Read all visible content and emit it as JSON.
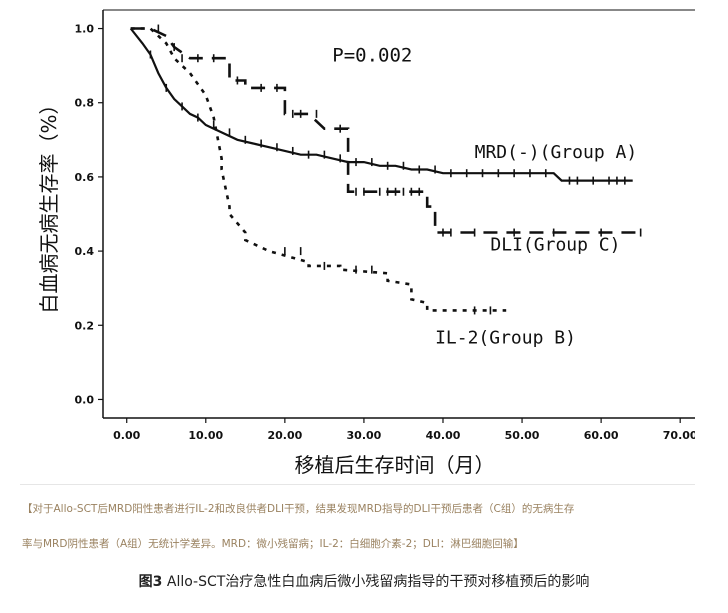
{
  "chart_data": {
    "type": "line",
    "ylabel": "白血病无病生存率（%）",
    "xlabel": "移植后生存时间（月）",
    "annotation": "P=0.002",
    "xlim": [
      -3,
      72
    ],
    "ylim": [
      -0.05,
      1.05
    ],
    "x_ticks": [
      "0.00",
      "10.00",
      "20.00",
      "30.00",
      "40.00",
      "50.00",
      "60.00",
      "70.00"
    ],
    "y_ticks": [
      "0.0",
      "0.2",
      "0.4",
      "0.6",
      "0.8",
      "1.0"
    ],
    "x_tick_values": [
      0,
      10,
      20,
      30,
      40,
      50,
      60,
      70
    ],
    "y_tick_values": [
      0,
      0.2,
      0.4,
      0.6,
      0.8,
      1.0
    ],
    "grid": false,
    "series": [
      {
        "name": "MRD(-)(Group A)",
        "style": "solid",
        "label_at": [
          44,
          0.67
        ],
        "x": [
          0.5,
          2,
          3,
          4,
          5,
          6,
          7,
          8,
          9,
          10,
          12,
          14,
          16,
          18,
          20,
          22,
          24,
          26,
          28,
          30,
          32,
          34,
          36,
          38,
          40,
          42,
          44,
          46,
          48,
          50,
          52,
          54,
          55,
          56,
          58,
          60,
          62,
          64
        ],
        "y": [
          1.0,
          0.96,
          0.93,
          0.88,
          0.84,
          0.81,
          0.79,
          0.77,
          0.76,
          0.74,
          0.72,
          0.7,
          0.69,
          0.68,
          0.67,
          0.66,
          0.66,
          0.65,
          0.64,
          0.64,
          0.63,
          0.63,
          0.62,
          0.62,
          0.61,
          0.61,
          0.61,
          0.61,
          0.61,
          0.61,
          0.61,
          0.61,
          0.59,
          0.59,
          0.59,
          0.59,
          0.59,
          0.59
        ],
        "censor_x": [
          3,
          5,
          7,
          9,
          11,
          13,
          15,
          17,
          19,
          21,
          23,
          25,
          27,
          29,
          31,
          33,
          35,
          37,
          39,
          41,
          43,
          45,
          47,
          49,
          51,
          53,
          56,
          57,
          59,
          61,
          62,
          63
        ]
      },
      {
        "name": "DLI(Group C)",
        "style": "dashed",
        "label_at": [
          46,
          0.42
        ],
        "x": [
          0.5,
          3,
          5,
          6,
          8,
          10,
          13,
          13,
          15,
          15,
          16,
          18,
          20,
          20,
          23,
          25,
          25,
          26,
          28,
          28,
          38,
          38,
          39,
          39,
          44,
          50,
          60,
          65
        ],
        "y": [
          1.0,
          1.0,
          0.98,
          0.95,
          0.92,
          0.92,
          0.92,
          0.86,
          0.86,
          0.84,
          0.84,
          0.84,
          0.84,
          0.77,
          0.77,
          0.73,
          0.73,
          0.73,
          0.73,
          0.56,
          0.56,
          0.52,
          0.52,
          0.45,
          0.45,
          0.45,
          0.45,
          0.45
        ],
        "censor_x": [
          6,
          9,
          11,
          14,
          17,
          19,
          21,
          22,
          24,
          27,
          29,
          30,
          32,
          33,
          34,
          35,
          36,
          37,
          40,
          41,
          44,
          49,
          54,
          60,
          65
        ]
      },
      {
        "name": "IL-2(Group B)",
        "style": "dotted",
        "label_at": [
          39,
          0.17
        ],
        "x": [
          0.5,
          3,
          5,
          6,
          8,
          10,
          11,
          12,
          12,
          13,
          13,
          15,
          15,
          18,
          18,
          23,
          23,
          27,
          27,
          33,
          33,
          36,
          36,
          38,
          38,
          48
        ],
        "y": [
          1.0,
          1.0,
          0.96,
          0.92,
          0.88,
          0.82,
          0.76,
          0.65,
          0.62,
          0.52,
          0.5,
          0.45,
          0.43,
          0.4,
          0.4,
          0.37,
          0.36,
          0.36,
          0.35,
          0.34,
          0.32,
          0.31,
          0.27,
          0.26,
          0.24,
          0.24
        ],
        "censor_x": [
          4,
          7,
          20,
          22,
          25,
          29,
          31,
          44,
          46
        ]
      }
    ]
  },
  "notes": {
    "line1": "【对于Allo-SCT后MRD阳性患者进行IL-2和改良供者DLI干预，结果发现MRD指导的DLI干预后患者（C组）的无病生存",
    "line2": "率与MRD阴性患者（A组）无统计学差异。MRD：微小残留病；IL-2：白细胞介素-2；DLI：淋巴细胞回输】"
  },
  "caption": {
    "label": "图3",
    "text": " Allo-SCT治疗急性白血病后微小残留病指导的干预对移植预后的影响"
  },
  "colors": {
    "ink": "#111111",
    "note": "#9a8260"
  }
}
